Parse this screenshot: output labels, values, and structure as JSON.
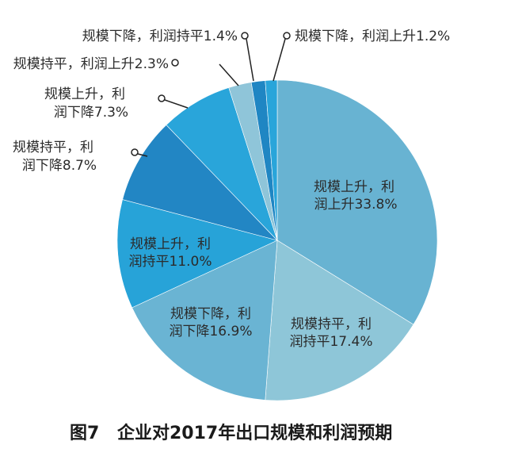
{
  "chart_data": {
    "type": "pie",
    "title": "图7  企业对2017年出口规模和利润预期",
    "start_angle": "12 o'clock, clockwise",
    "slices": [
      {
        "label": "规模上升，利润上升",
        "value": 33.8,
        "color": "#68b3d2",
        "text_lines": [
          "规模上升，利",
          "润上升33.8%"
        ]
      },
      {
        "label": "规模持平，利润持平",
        "value": 17.4,
        "color": "#8ec6d8",
        "text_lines": [
          "规模持平，利",
          "润持平17.4%"
        ]
      },
      {
        "label": "规模下降，利润下降",
        "value": 16.9,
        "color": "#6ab4d3",
        "text_lines": [
          "规模下降，利",
          "润下降16.9%"
        ]
      },
      {
        "label": "规模上升，利润持平",
        "value": 11.0,
        "color": "#27a3d8",
        "text_lines": [
          "规模上升，利",
          "润持平11.0%"
        ]
      },
      {
        "label": "规模持平，利润下降",
        "value": 8.7,
        "color": "#2286c4",
        "text_lines": [
          "规模持平，利",
          "润下降8.7%"
        ]
      },
      {
        "label": "规模上升，利润下降",
        "value": 7.3,
        "color": "#29a5da",
        "text_lines": [
          "规模上升，利",
          "润下降7.3%"
        ]
      },
      {
        "label": "规模持平，利润上升",
        "value": 2.3,
        "color": "#8fc5d9",
        "text_lines": [
          "规模持平，利润上升2.3%"
        ]
      },
      {
        "label": "规模下降，利润持平",
        "value": 1.4,
        "color": "#1f86c3",
        "text_lines": [
          "规模下降，利润持平1.4%"
        ]
      },
      {
        "label": "规模下降，利润上升",
        "value": 1.2,
        "color": "#29a5da",
        "text_lines": [
          "规模下降，利润上升1.2%"
        ]
      }
    ]
  },
  "caption": {
    "figure_no": "图7",
    "text": "企业对2017年出口规模和利润预期"
  }
}
